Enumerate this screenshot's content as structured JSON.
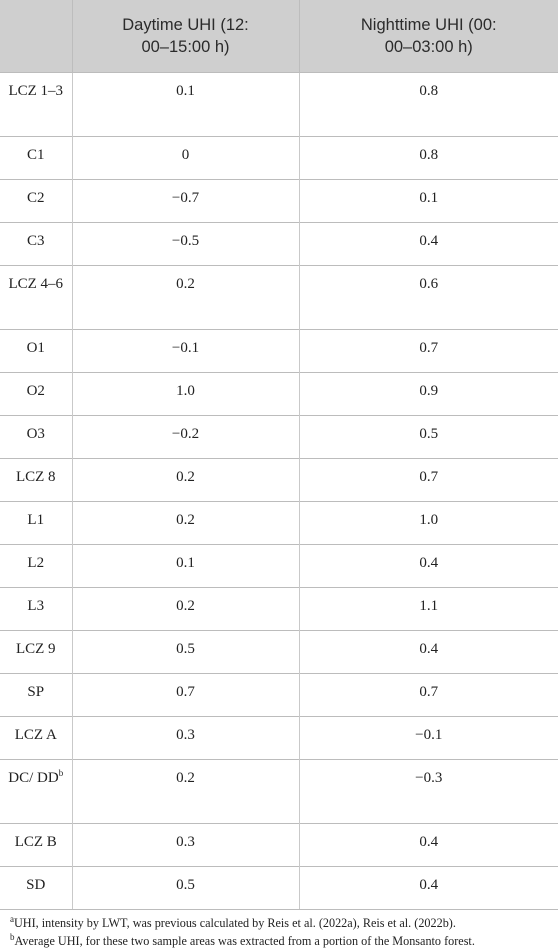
{
  "table": {
    "headers": [
      "",
      "Daytime UHI (12:\n00–15:00 h)",
      "Nighttime UHI (00:\n00–03:00 h)"
    ],
    "rows": [
      {
        "label": "LCZ 1–3",
        "sup": "",
        "day": "0.1",
        "night": "0.8"
      },
      {
        "label": "C1",
        "sup": "",
        "day": "0",
        "night": "0.8"
      },
      {
        "label": "C2",
        "sup": "",
        "day": "−0.7",
        "night": "0.1"
      },
      {
        "label": "C3",
        "sup": "",
        "day": "−0.5",
        "night": "0.4"
      },
      {
        "label": "LCZ 4–6",
        "sup": "",
        "day": "0.2",
        "night": "0.6"
      },
      {
        "label": "O1",
        "sup": "",
        "day": "−0.1",
        "night": "0.7"
      },
      {
        "label": "O2",
        "sup": "",
        "day": "1.0",
        "night": "0.9"
      },
      {
        "label": "O3",
        "sup": "",
        "day": "−0.2",
        "night": "0.5"
      },
      {
        "label": "LCZ 8",
        "sup": "",
        "day": "0.2",
        "night": "0.7"
      },
      {
        "label": "L1",
        "sup": "",
        "day": "0.2",
        "night": "1.0"
      },
      {
        "label": "L2",
        "sup": "",
        "day": "0.1",
        "night": "0.4"
      },
      {
        "label": "L3",
        "sup": "",
        "day": "0.2",
        "night": "1.1"
      },
      {
        "label": "LCZ 9",
        "sup": "",
        "day": "0.5",
        "night": "0.4"
      },
      {
        "label": "SP",
        "sup": "",
        "day": "0.7",
        "night": "0.7"
      },
      {
        "label": "LCZ A",
        "sup": "",
        "day": "0.3",
        "night": "−0.1"
      },
      {
        "label": "DC/ DD",
        "sup": "b",
        "day": "0.2",
        "night": "−0.3"
      },
      {
        "label": "LCZ B",
        "sup": "",
        "day": "0.3",
        "night": "0.4"
      },
      {
        "label": "SD",
        "sup": "",
        "day": "0.5",
        "night": "0.4"
      }
    ]
  },
  "footnotes": [
    {
      "mark": "a",
      "text": "UHI, intensity by LWT, was previous calculated by Reis et al. (2022a), Reis et al. (2022b)."
    },
    {
      "mark": "b",
      "text": "Average UHI, for these two sample areas was extracted from a portion of the Monsanto forest."
    }
  ]
}
